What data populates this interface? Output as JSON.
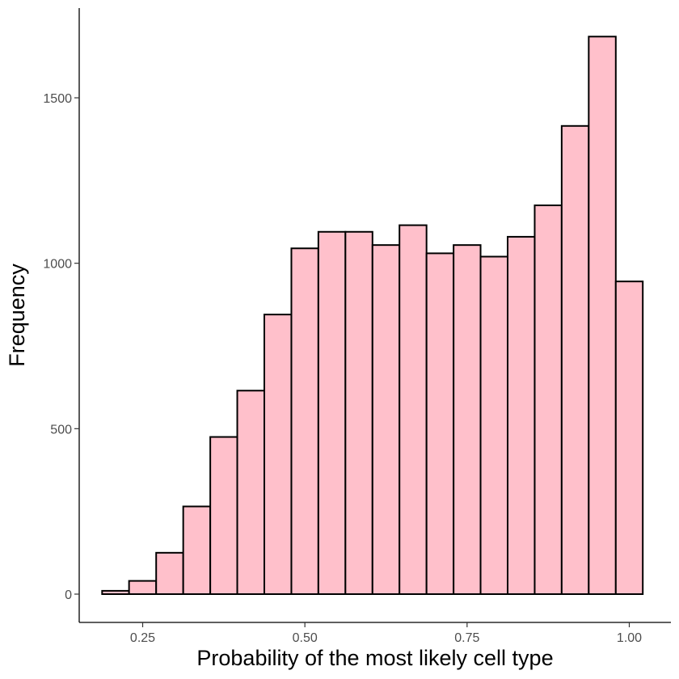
{
  "chart_data": {
    "type": "bar",
    "subtype": "histogram",
    "title": "",
    "xlabel": "Probability of the most likely cell type",
    "ylabel": "Frequency",
    "xlim": [
      0.18,
      1.02
    ],
    "ylim": [
      0,
      1750
    ],
    "xticks": [
      0.25,
      0.5,
      0.75,
      1.0
    ],
    "xtick_labels": [
      "0.25",
      "0.50",
      "0.75",
      "1.00"
    ],
    "yticks": [
      0,
      500,
      1000,
      1500
    ],
    "ytick_labels": [
      "0",
      "500",
      "1000",
      "1500"
    ],
    "bin_edges": [
      0.1875,
      0.229,
      0.2708,
      0.3125,
      0.3542,
      0.3958,
      0.4375,
      0.4792,
      0.5208,
      0.5625,
      0.6042,
      0.6458,
      0.6875,
      0.7292,
      0.7708,
      0.8125,
      0.8542,
      0.8958,
      0.9375,
      0.9792,
      1.0208
    ],
    "values": [
      10,
      40,
      125,
      265,
      475,
      615,
      845,
      1045,
      1095,
      1095,
      1055,
      1115,
      1030,
      1055,
      1020,
      1080,
      1175,
      1415,
      1685,
      945
    ],
    "fill_color": "#FFC0CB",
    "edge_color": "#000000",
    "grid": false,
    "legend": "none"
  }
}
